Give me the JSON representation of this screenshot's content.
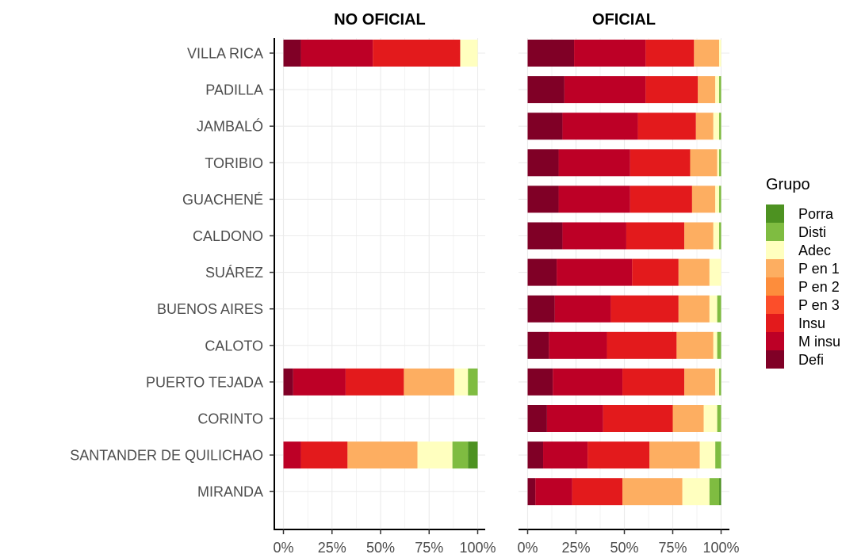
{
  "chart_data": {
    "type": "bar",
    "orientation": "horizontal",
    "stacked": true,
    "grid": true,
    "legend_position": "right",
    "categories": [
      "VILLA RICA",
      "PADILLA",
      "JAMBALÓ",
      "TORIBIO",
      "GUACHENÉ",
      "CALDONO",
      "SUÁREZ",
      "BUENOS AIRES",
      "CALOTO",
      "PUERTO TEJADA",
      "CORINTO",
      "SANTANDER DE QUILICHAO",
      "MIRANDA"
    ],
    "x_ticks": [
      "0%",
      "25%",
      "50%",
      "75%",
      "100%"
    ],
    "xlim": [
      0,
      1
    ],
    "legend": {
      "title": "Grupo",
      "entries": [
        {
          "key": "porra",
          "label": "Porra",
          "color": "#4d9221"
        },
        {
          "key": "disti",
          "label": "Disti",
          "color": "#7fbc41"
        },
        {
          "key": "adec",
          "label": "Adec",
          "color": "#ffffbf"
        },
        {
          "key": "p1",
          "label": "P en 1",
          "color": "#fdae61"
        },
        {
          "key": "p2",
          "label": "P en 2",
          "color": "#fd8d3c"
        },
        {
          "key": "p3",
          "label": "P en 3",
          "color": "#fc4e2a"
        },
        {
          "key": "insu",
          "label": "Insu",
          "color": "#e31a1c"
        },
        {
          "key": "minsu",
          "label": "M insu",
          "color": "#bd0026"
        },
        {
          "key": "defi",
          "label": "Defi",
          "color": "#800026"
        }
      ]
    },
    "stack_order": [
      "defi",
      "minsu",
      "insu",
      "p3",
      "p2",
      "p1",
      "adec",
      "disti",
      "porra"
    ],
    "facets": [
      {
        "title": "NO OFICIAL",
        "values": {
          "VILLA RICA": {
            "defi": 0.09,
            "minsu": 0.37,
            "insu": 0.45,
            "adec": 0.09
          },
          "PUERTO TEJADA": {
            "defi": 0.05,
            "minsu": 0.27,
            "insu": 0.3,
            "p1": 0.26,
            "adec": 0.07,
            "disti": 0.05
          },
          "SANTANDER DE QUILICHAO": {
            "minsu": 0.09,
            "insu": 0.24,
            "p1": 0.36,
            "adec": 0.18,
            "disti": 0.08,
            "porra": 0.05
          }
        }
      },
      {
        "title": "OFICIAL",
        "values": {
          "VILLA RICA": {
            "defi": 0.24,
            "minsu": 0.37,
            "insu": 0.25,
            "p1": 0.13,
            "adec": 0.01
          },
          "PADILLA": {
            "defi": 0.19,
            "minsu": 0.42,
            "insu": 0.27,
            "p1": 0.09,
            "adec": 0.02,
            "disti": 0.01
          },
          "JAMBALÓ": {
            "defi": 0.18,
            "minsu": 0.39,
            "insu": 0.3,
            "p1": 0.09,
            "adec": 0.03,
            "disti": 0.01
          },
          "TORIBIO": {
            "defi": 0.16,
            "minsu": 0.37,
            "insu": 0.31,
            "p1": 0.14,
            "adec": 0.01,
            "disti": 0.01
          },
          "GUACHENÉ": {
            "defi": 0.16,
            "minsu": 0.37,
            "insu": 0.32,
            "p1": 0.12,
            "adec": 0.02,
            "disti": 0.01
          },
          "CALDONO": {
            "defi": 0.18,
            "minsu": 0.33,
            "insu": 0.3,
            "p1": 0.15,
            "adec": 0.03,
            "disti": 0.01
          },
          "SUÁREZ": {
            "defi": 0.15,
            "minsu": 0.39,
            "insu": 0.24,
            "p1": 0.16,
            "adec": 0.06
          },
          "BUENOS AIRES": {
            "defi": 0.14,
            "minsu": 0.29,
            "insu": 0.35,
            "p1": 0.16,
            "adec": 0.04,
            "disti": 0.02
          },
          "CALOTO": {
            "defi": 0.11,
            "minsu": 0.3,
            "insu": 0.36,
            "p1": 0.19,
            "adec": 0.02,
            "disti": 0.02
          },
          "PUERTO TEJADA": {
            "defi": 0.13,
            "minsu": 0.36,
            "insu": 0.32,
            "p1": 0.16,
            "adec": 0.02,
            "disti": 0.01
          },
          "CORINTO": {
            "defi": 0.1,
            "minsu": 0.29,
            "insu": 0.36,
            "p1": 0.16,
            "adec": 0.07,
            "disti": 0.02
          },
          "SANTANDER DE QUILICHAO": {
            "defi": 0.08,
            "minsu": 0.23,
            "insu": 0.32,
            "p1": 0.26,
            "adec": 0.08,
            "disti": 0.03
          },
          "MIRANDA": {
            "defi": 0.04,
            "minsu": 0.19,
            "insu": 0.26,
            "p1": 0.31,
            "adec": 0.14,
            "disti": 0.05,
            "porra": 0.01
          }
        }
      }
    ]
  }
}
